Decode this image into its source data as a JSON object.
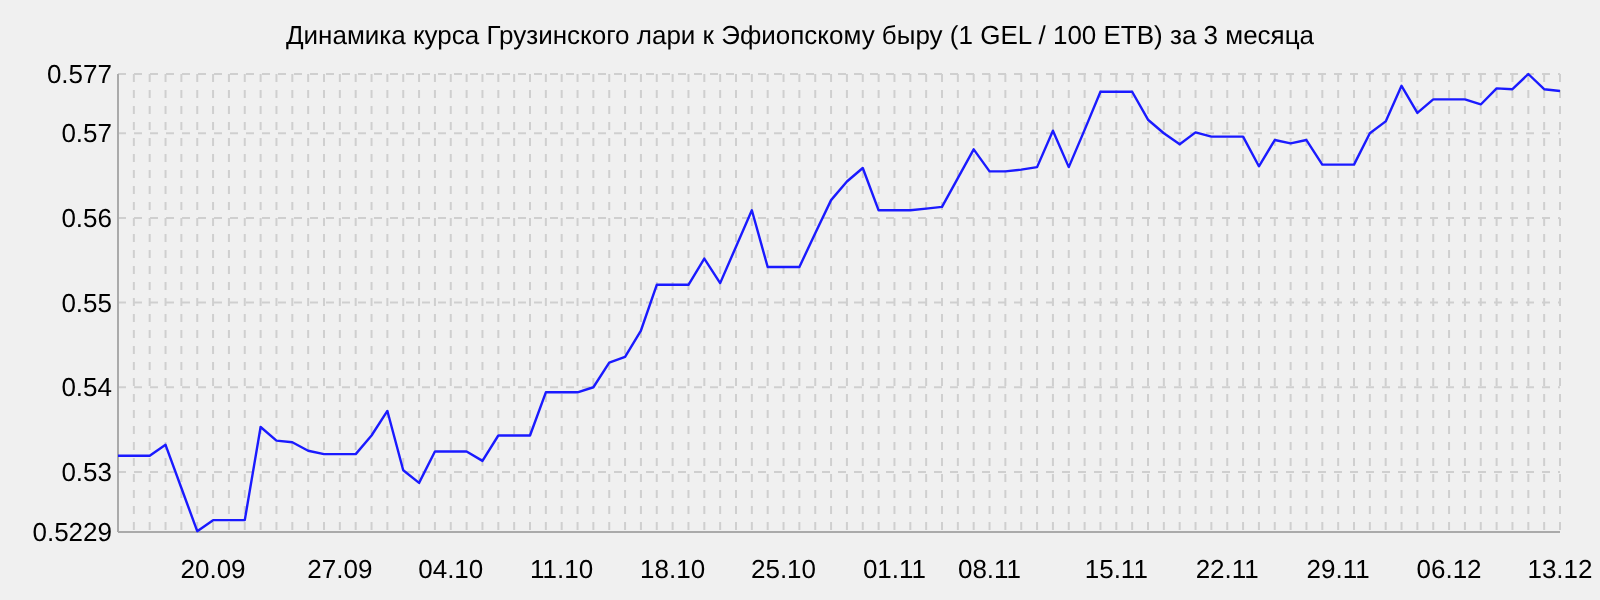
{
  "chart_data": {
    "type": "line",
    "title": "Динамика курса Грузинского лари к Эфиопскому быру (1 GEL / 100 ETB) за 3 месяца",
    "categories": [
      null,
      null,
      null,
      null,
      null,
      null,
      "20.09",
      null,
      null,
      null,
      null,
      null,
      null,
      null,
      "27.09",
      null,
      null,
      null,
      null,
      null,
      null,
      "04.10",
      null,
      null,
      null,
      null,
      null,
      null,
      "11.10",
      null,
      null,
      null,
      null,
      null,
      null,
      "18.10",
      null,
      null,
      null,
      null,
      null,
      null,
      "25.10",
      null,
      null,
      null,
      null,
      null,
      null,
      "01.11",
      null,
      null,
      null,
      null,
      null,
      "08.11",
      null,
      null,
      null,
      null,
      null,
      null,
      null,
      "15.11",
      null,
      null,
      null,
      null,
      null,
      null,
      "22.11",
      null,
      null,
      null,
      null,
      null,
      null,
      "29.11",
      null,
      null,
      null,
      null,
      null,
      null,
      "06.12",
      null,
      null,
      null,
      null,
      null,
      null,
      "13.12"
    ],
    "series": [
      {
        "color": "#1a1aff",
        "values": [
          0.5319,
          0.5319,
          0.5319,
          0.5332,
          0.5281,
          0.523,
          0.5243,
          0.5243,
          0.5243,
          0.5353,
          0.5337,
          0.5335,
          0.5325,
          0.5321,
          0.5321,
          0.5321,
          0.5343,
          0.5372,
          0.5302,
          0.5287,
          0.5324,
          0.5324,
          0.5324,
          0.5313,
          0.5343,
          0.5343,
          0.5343,
          0.5394,
          0.5394,
          0.5394,
          0.54,
          0.5429,
          0.5436,
          0.5467,
          0.5521,
          0.5521,
          0.5521,
          0.5552,
          0.5523,
          0.5566,
          0.5609,
          0.5542,
          0.5542,
          0.5542,
          0.5582,
          0.5621,
          0.5643,
          0.5659,
          0.5609,
          0.5609,
          0.5609,
          0.5611,
          0.5613,
          0.5647,
          0.5681,
          0.5655,
          0.5655,
          0.5657,
          0.566,
          0.5703,
          0.566,
          0.5704,
          0.5749,
          0.5749,
          0.5749,
          0.5716,
          0.57,
          0.5687,
          0.5701,
          0.5696,
          0.5696,
          0.5696,
          0.5661,
          0.5692,
          0.5688,
          0.5692,
          0.5663,
          0.5663,
          0.5663,
          0.57,
          0.5714,
          0.5756,
          0.5724,
          0.574,
          0.574,
          0.574,
          0.5734,
          0.5753,
          0.5752,
          0.577,
          0.5752,
          0.575
        ]
      }
    ],
    "ylim": [
      0.5229,
      0.577
    ],
    "yticks": [
      0.5229,
      0.53,
      0.54,
      0.55,
      0.56,
      0.57,
      0.577
    ],
    "grid": true,
    "marker": "none",
    "line_style": "solid"
  }
}
